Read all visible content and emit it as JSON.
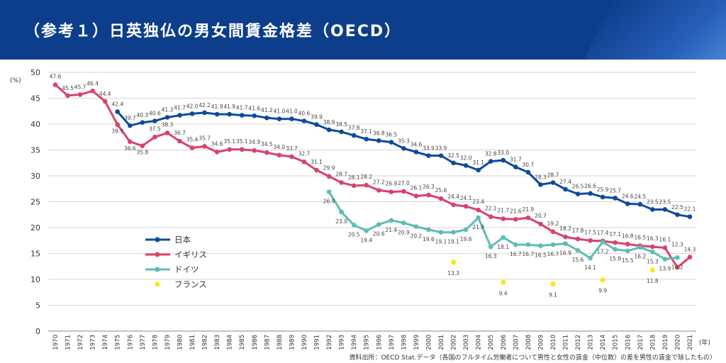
{
  "header": {
    "title": "（参考１）日英独仏の男女間賃金格差（OECD）"
  },
  "source_note": "資料出所：OECD Stat.データ（各国のフルタイム労働者について男性と女性の賃金（中位数）の差を男性の賃金で除したもの）",
  "chart_data": {
    "type": "line",
    "y_unit_label": "(%)",
    "x_unit_label": "(年)",
    "ylim": [
      0,
      50
    ],
    "yticks": [
      0,
      5,
      10,
      15,
      20,
      25,
      30,
      35,
      40,
      45,
      50
    ],
    "grid": true,
    "legend_position": "left",
    "x": [
      1970,
      1971,
      1972,
      1973,
      1974,
      1975,
      1976,
      1977,
      1978,
      1979,
      1980,
      1981,
      1982,
      1983,
      1984,
      1985,
      1986,
      1987,
      1988,
      1989,
      1990,
      1991,
      1992,
      1993,
      1994,
      1995,
      1996,
      1997,
      1998,
      1999,
      2000,
      2001,
      2002,
      2003,
      2004,
      2005,
      2006,
      2007,
      2008,
      2009,
      2010,
      2011,
      2012,
      2013,
      2014,
      2015,
      2016,
      2017,
      2018,
      2019,
      2020,
      2021
    ],
    "series": [
      {
        "name": "日本",
        "color": "#0d4a9c",
        "values": [
          null,
          null,
          null,
          null,
          null,
          42.4,
          39.7,
          40.3,
          40.6,
          41.3,
          41.7,
          42.0,
          42.2,
          41.9,
          41.9,
          41.7,
          41.6,
          41.2,
          41.0,
          41.0,
          40.6,
          39.9,
          38.9,
          38.5,
          37.8,
          37.1,
          36.8,
          36.5,
          35.3,
          34.6,
          33.9,
          33.9,
          32.5,
          32.0,
          31.1,
          32.8,
          33.0,
          31.7,
          30.7,
          28.3,
          28.7,
          27.4,
          26.5,
          26.6,
          25.9,
          25.7,
          24.6,
          24.5,
          23.5,
          23.5,
          22.5,
          22.1
        ]
      },
      {
        "name": "イギリス",
        "color": "#d9426a",
        "values": [
          47.6,
          45.5,
          45.7,
          46.4,
          44.4,
          39.9,
          36.6,
          35.8,
          37.5,
          38.3,
          36.7,
          35.4,
          35.7,
          34.6,
          35.1,
          35.1,
          34.9,
          34.5,
          34.0,
          33.7,
          32.7,
          31.1,
          29.9,
          28.7,
          28.1,
          28.2,
          27.2,
          26.9,
          27.0,
          26.1,
          26.3,
          25.6,
          24.4,
          24.1,
          23.4,
          22.1,
          21.7,
          21.6,
          21.9,
          20.7,
          19.2,
          18.2,
          17.8,
          17.5,
          17.4,
          17.1,
          16.8,
          16.5,
          16.3,
          16.1,
          12.3,
          14.3
        ]
      },
      {
        "name": "ドイツ",
        "color": "#5dbdb5",
        "values": [
          null,
          null,
          null,
          null,
          null,
          null,
          null,
          null,
          null,
          null,
          null,
          null,
          null,
          null,
          null,
          null,
          null,
          null,
          null,
          null,
          null,
          null,
          26.9,
          23.0,
          20.5,
          19.4,
          20.6,
          21.4,
          20.9,
          20.2,
          19.6,
          19.1,
          19.1,
          19.6,
          21.9,
          16.3,
          18.1,
          16.7,
          16.7,
          16.5,
          16.7,
          16.9,
          15.6,
          14.1,
          17.2,
          15.8,
          15.5,
          16.2,
          15.3,
          13.9,
          14.2,
          null
        ]
      },
      {
        "name": "フランス",
        "color": "#f5e62a",
        "values": [
          null,
          null,
          null,
          null,
          null,
          null,
          null,
          null,
          null,
          null,
          null,
          null,
          null,
          null,
          null,
          null,
          null,
          null,
          null,
          null,
          null,
          null,
          null,
          null,
          null,
          null,
          null,
          null,
          null,
          null,
          null,
          null,
          13.3,
          null,
          null,
          null,
          9.4,
          null,
          null,
          null,
          9.1,
          null,
          null,
          null,
          9.9,
          null,
          null,
          null,
          11.8,
          null,
          null,
          null
        ]
      }
    ]
  }
}
